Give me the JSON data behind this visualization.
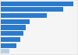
{
  "values": [
    95,
    82,
    60,
    38,
    33,
    30,
    26,
    20,
    11
  ],
  "bar_colors": [
    "#2b7bcc",
    "#2b7bcc",
    "#2b7bcc",
    "#2b7bcc",
    "#2b7bcc",
    "#2b7bcc",
    "#2b7bcc",
    "#2b7bcc",
    "#b8d0e8"
  ],
  "background_color": "#e8e8e8",
  "plot_bg_color": "#f5f5f5",
  "grid_color": "#d0d0d0",
  "xlim": [
    0,
    100
  ],
  "bar_height": 0.78,
  "figsize": [
    1.0,
    0.71
  ],
  "dpi": 100
}
